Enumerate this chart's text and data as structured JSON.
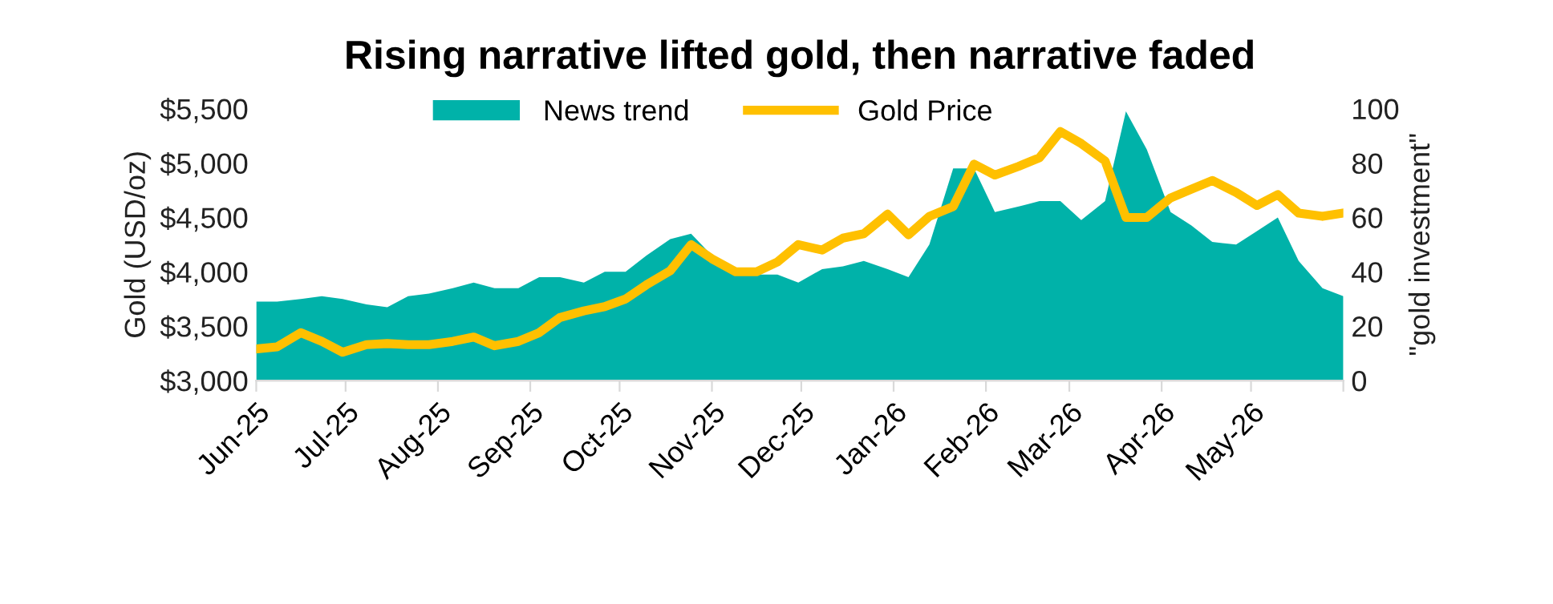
{
  "chart_data": {
    "type": "line",
    "title": "Rising narrative lifted gold, then narrative faded",
    "ylabel": "Gold (USD/oz)",
    "y2label": "\"gold investment\"",
    "x": [
      "2025-06-01",
      "2025-06-08",
      "2025-06-16",
      "2025-06-23",
      "2025-06-30",
      "2025-07-08",
      "2025-07-15",
      "2025-07-22",
      "2025-07-29",
      "2025-08-06",
      "2025-08-13",
      "2025-08-20",
      "2025-08-28",
      "2025-09-04",
      "2025-09-11",
      "2025-09-19",
      "2025-09-26",
      "2025-10-03",
      "2025-10-10",
      "2025-10-18",
      "2025-10-25",
      "2025-11-01",
      "2025-11-09",
      "2025-11-16",
      "2025-11-23",
      "2025-11-30",
      "2025-12-08",
      "2025-12-15",
      "2025-12-22",
      "2025-12-30",
      "2026-01-06",
      "2026-01-13",
      "2026-01-21",
      "2026-01-28",
      "2026-02-04",
      "2026-02-12",
      "2026-02-19",
      "2026-02-26",
      "2026-03-05",
      "2026-03-13",
      "2026-03-20",
      "2026-03-27",
      "2026-04-04",
      "2026-04-11",
      "2026-04-18",
      "2026-04-26",
      "2026-05-03",
      "2026-05-10",
      "2026-05-17",
      "2026-05-25",
      "2026-06-01"
    ],
    "series": [
      {
        "name": "News trend",
        "type": "area",
        "axis": "y2",
        "color": "#00b2a9",
        "values": [
          29,
          29,
          30,
          31,
          30,
          28,
          27,
          31,
          32,
          34,
          36,
          34,
          34,
          38,
          38,
          36,
          40,
          40,
          46,
          52,
          54,
          46,
          40,
          39,
          39,
          36,
          41,
          42,
          44,
          41,
          38,
          50,
          78,
          78,
          62,
          64,
          66,
          66,
          59,
          66,
          99,
          85,
          62,
          57,
          51,
          50,
          55,
          60,
          44,
          34,
          31
        ]
      },
      {
        "name": "Gold Price",
        "color": "#ffc000",
        "values": [
          3290,
          3310,
          3440,
          3360,
          3260,
          3330,
          3340,
          3330,
          3330,
          3360,
          3400,
          3320,
          3360,
          3440,
          3580,
          3640,
          3680,
          3750,
          3880,
          4010,
          4250,
          4120,
          4000,
          4000,
          4090,
          4250,
          4200,
          4310,
          4350,
          4530,
          4340,
          4510,
          4600,
          4990,
          4890,
          4970,
          5050,
          5290,
          5180,
          5020,
          4500,
          4500,
          4680,
          4760,
          4840,
          4730,
          4610,
          4710,
          4540,
          4510,
          4540
        ]
      }
    ],
    "xlim": [
      "2025-06-01",
      "2026-06-01"
    ],
    "xticks": [
      {
        "value": "2025-06-01",
        "label": "Jun-25"
      },
      {
        "value": "2025-07-01",
        "label": "Jul-25"
      },
      {
        "value": "2025-08-01",
        "label": "Aug-25"
      },
      {
        "value": "2025-09-01",
        "label": "Sep-25"
      },
      {
        "value": "2025-10-01",
        "label": "Oct-25"
      },
      {
        "value": "2025-11-01",
        "label": "Nov-25"
      },
      {
        "value": "2025-12-01",
        "label": "Dec-25"
      },
      {
        "value": "2026-01-01",
        "label": "Jan-26"
      },
      {
        "value": "2026-02-01",
        "label": "Feb-26"
      },
      {
        "value": "2026-03-01",
        "label": "Mar-26"
      },
      {
        "value": "2026-04-01",
        "label": "Apr-26"
      },
      {
        "value": "2026-05-01",
        "label": "May-26"
      },
      {
        "value": "2026-06-01",
        "label": null
      }
    ],
    "ylim": [
      3000,
      5500
    ],
    "yticks": [
      {
        "value": 3000,
        "label": "$3,000"
      },
      {
        "value": 3500,
        "label": "$3,500"
      },
      {
        "value": 4000,
        "label": "$4,000"
      },
      {
        "value": 4500,
        "label": "$4,500"
      },
      {
        "value": 5000,
        "label": "$5,000"
      },
      {
        "value": 5500,
        "label": "$5,500"
      }
    ],
    "y2lim": [
      0,
      100
    ],
    "y2ticks": [
      0,
      20,
      40,
      60,
      80,
      100
    ],
    "legend": "top",
    "grid": false,
    "marker": "none",
    "line_style": "solid"
  }
}
